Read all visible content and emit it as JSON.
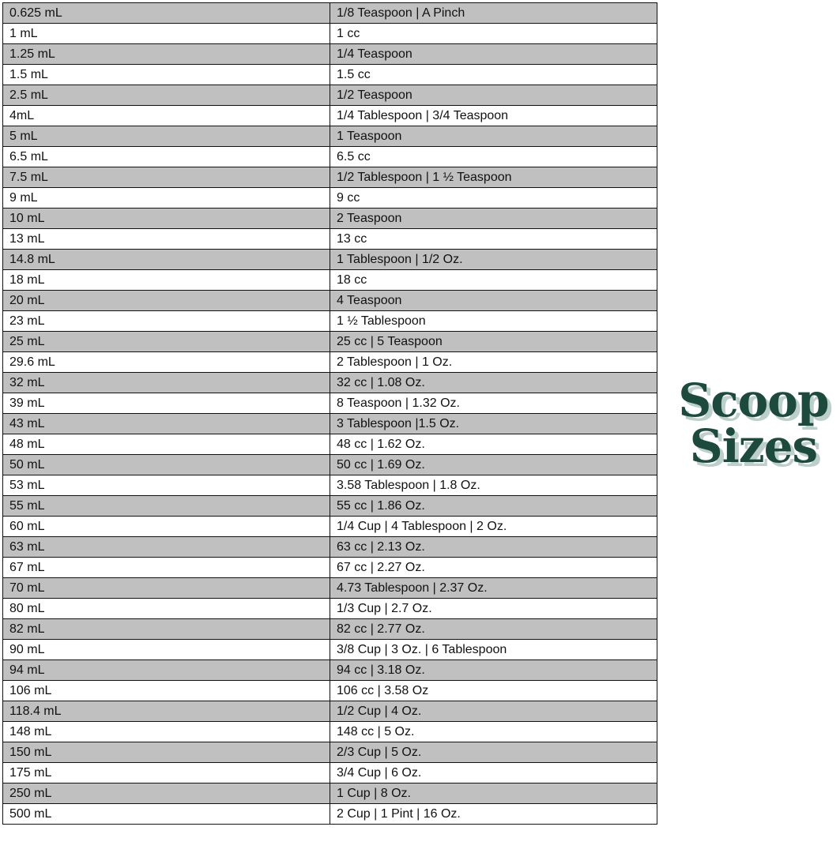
{
  "title": {
    "line1": "Scoop",
    "line2": "Sizes",
    "color": "#1d4a3d",
    "shadow_color": "#bccfca"
  },
  "table": {
    "row_colors": [
      "#c0c0c0",
      "#ffffff"
    ],
    "rows": [
      [
        "0.625 mL",
        "1/8 Teaspoon | A Pinch"
      ],
      [
        "1 mL",
        "1 cc"
      ],
      [
        "1.25 mL",
        "1/4 Teaspoon"
      ],
      [
        "1.5 mL",
        "1.5 cc"
      ],
      [
        "2.5 mL",
        "1/2 Teaspoon"
      ],
      [
        "4mL",
        "1/4 Tablespoon | 3/4 Teaspoon"
      ],
      [
        "5 mL",
        "1 Teaspoon"
      ],
      [
        "6.5 mL",
        "6.5 cc"
      ],
      [
        "7.5 mL",
        "1/2 Tablespoon | 1 ½ Teaspoon"
      ],
      [
        "9 mL",
        "9 cc"
      ],
      [
        "10 mL",
        "2 Teaspoon"
      ],
      [
        "13 mL",
        "13 cc"
      ],
      [
        "14.8 mL",
        "1 Tablespoon | 1/2 Oz."
      ],
      [
        "18 mL",
        "18 cc"
      ],
      [
        "20 mL",
        "4 Teaspoon"
      ],
      [
        "23 mL",
        "1 ½ Tablespoon"
      ],
      [
        "25 mL",
        "25 cc | 5 Teaspoon"
      ],
      [
        "29.6 mL",
        "2 Tablespoon | 1 Oz."
      ],
      [
        "32 mL",
        "32 cc | 1.08 Oz."
      ],
      [
        "39 mL",
        "8 Teaspoon | 1.32 Oz."
      ],
      [
        "43 mL",
        "3 Tablespoon |1.5 Oz."
      ],
      [
        "48 mL",
        "48 cc | 1.62 Oz."
      ],
      [
        "50 mL",
        "50 cc | 1.69 Oz."
      ],
      [
        "53 mL",
        "3.58 Tablespoon | 1.8 Oz."
      ],
      [
        "55 mL",
        "55 cc | 1.86 Oz."
      ],
      [
        "60 mL",
        "1/4 Cup | 4 Tablespoon | 2 Oz."
      ],
      [
        "63 mL",
        "63 cc | 2.13 Oz."
      ],
      [
        "67 mL",
        "67 cc | 2.27 Oz."
      ],
      [
        "70 mL",
        "4.73 Tablespoon | 2.37 Oz."
      ],
      [
        "80 mL",
        "1/3 Cup | 2.7 Oz."
      ],
      [
        "82 mL",
        "82 cc | 2.77 Oz."
      ],
      [
        "90 mL",
        "3/8 Cup | 3 Oz. | 6 Tablespoon"
      ],
      [
        "94 mL",
        "94 cc | 3.18 Oz."
      ],
      [
        "106 mL",
        "106 cc | 3.58 Oz"
      ],
      [
        "118.4 mL",
        "1/2 Cup | 4 Oz."
      ],
      [
        "148 mL",
        "148 cc | 5 Oz."
      ],
      [
        "150 mL",
        "2/3 Cup | 5 Oz."
      ],
      [
        "175 mL",
        "3/4 Cup | 6 Oz."
      ],
      [
        "250 mL",
        "1 Cup | 8 Oz."
      ],
      [
        "500 mL",
        "2 Cup | 1 Pint | 16 Oz."
      ]
    ]
  }
}
